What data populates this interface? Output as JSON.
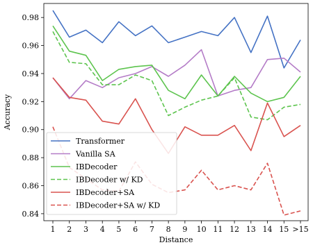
{
  "chart_data": {
    "type": "line",
    "xlabel": "Distance",
    "ylabel": "Accuracy",
    "categories": [
      "1",
      "2",
      "3",
      "4",
      "5",
      "6",
      "7",
      "8",
      "9",
      "10",
      "11",
      "12",
      "13",
      "14",
      "15",
      ">15"
    ],
    "ylim": [
      0.835,
      0.99
    ],
    "yticks": [
      "0.84",
      "0.86",
      "0.88",
      "0.90",
      "0.92",
      "0.94",
      "0.96",
      "0.98"
    ],
    "legend_position": "lower-left",
    "grid": false,
    "series": [
      {
        "name": "Transformer",
        "color": "#4472C4",
        "dash": "solid",
        "values": [
          0.985,
          0.966,
          0.971,
          0.962,
          0.977,
          0.967,
          0.974,
          0.962,
          0.966,
          0.97,
          0.967,
          0.98,
          0.955,
          0.981,
          0.944,
          0.964
        ]
      },
      {
        "name": "Vanilla SA",
        "color": "#B47CC7",
        "dash": "solid",
        "values": [
          0.937,
          0.922,
          0.935,
          0.93,
          0.937,
          0.94,
          0.945,
          0.938,
          0.946,
          0.957,
          0.924,
          0.928,
          0.93,
          0.95,
          0.951,
          0.941
        ]
      },
      {
        "name": "IBDecoder",
        "color": "#5DC44E",
        "dash": "solid",
        "values": [
          0.974,
          0.956,
          0.953,
          0.935,
          0.943,
          0.945,
          0.946,
          0.928,
          0.922,
          0.939,
          0.924,
          0.938,
          0.926,
          0.92,
          0.923,
          0.938
        ]
      },
      {
        "name": "IBDecoder w/ KD",
        "color": "#5DC44E",
        "dash": "dashed",
        "values": [
          0.97,
          0.948,
          0.947,
          0.932,
          0.932,
          0.939,
          0.935,
          0.91,
          0.916,
          0.921,
          0.924,
          0.937,
          0.909,
          0.907,
          0.916,
          0.918
        ]
      },
      {
        "name": "IBDecoder+SA",
        "color": "#D9534F",
        "dash": "solid",
        "values": [
          0.937,
          0.923,
          0.921,
          0.906,
          0.904,
          0.922,
          0.9,
          0.883,
          0.902,
          0.896,
          0.896,
          0.903,
          0.885,
          0.919,
          0.895,
          0.903
        ]
      },
      {
        "name": "IBDecoder+SA w/ KD",
        "color": "#D9534F",
        "dash": "dashed",
        "values": [
          0.902,
          0.873,
          0.865,
          0.857,
          0.856,
          0.877,
          0.861,
          0.855,
          0.857,
          0.871,
          0.857,
          0.86,
          0.857,
          0.876,
          0.839,
          0.842
        ]
      }
    ]
  }
}
